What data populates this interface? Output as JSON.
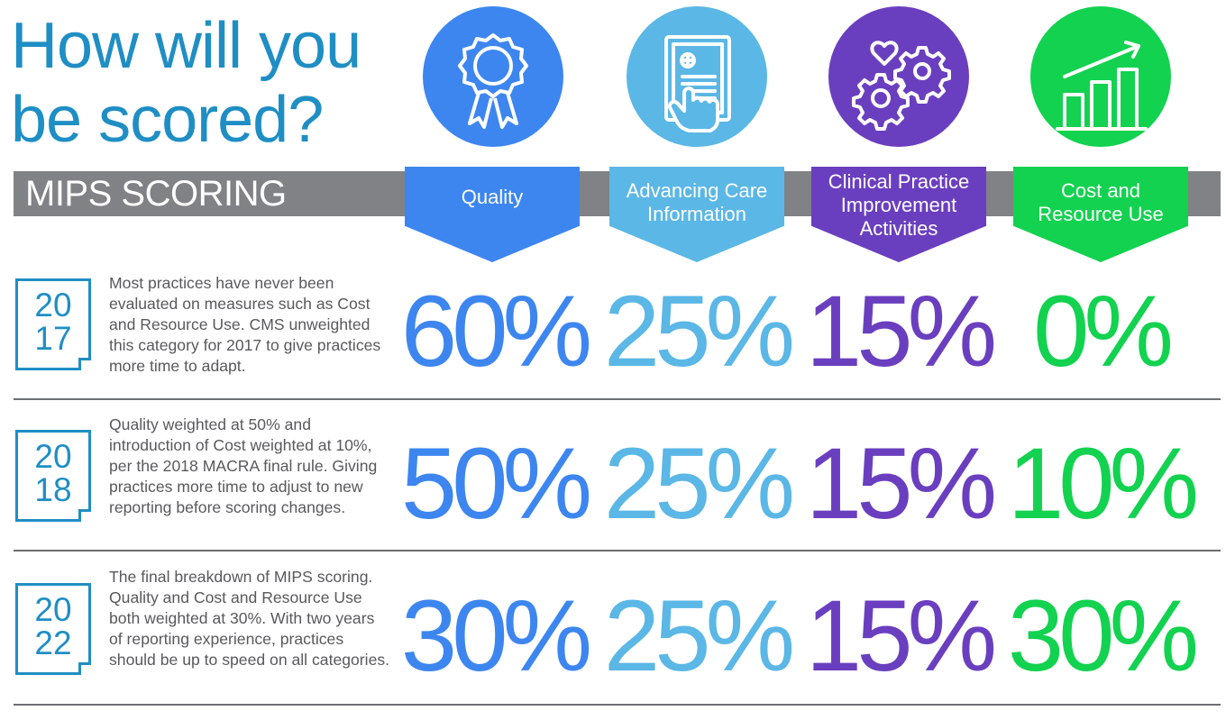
{
  "title_line1": "How will you",
  "title_line2": "be scored?",
  "section_label": "MIPS SCORING",
  "colors": {
    "quality": "#3d86f0",
    "advancing": "#5bb7e5",
    "clinical": "#6a3fbf",
    "cost": "#12d250",
    "title": "#1f8ec4",
    "bar": "#808285"
  },
  "categories": [
    {
      "label": "Quality",
      "icon": "award-ribbon-icon",
      "color": "#3d86f0"
    },
    {
      "label": "Advancing Care Information",
      "icon": "tablet-hand-icon",
      "color": "#5bb7e5"
    },
    {
      "label": "Clinical Practice Improvement Activities",
      "icon": "gears-heart-icon",
      "color": "#6a3fbf"
    },
    {
      "label": "Cost and Resource Use",
      "icon": "bar-chart-arrow-icon",
      "color": "#12d250"
    }
  ],
  "rows": [
    {
      "year_top": "20",
      "year_bottom": "17",
      "description": "Most practices have never been evaluated on measures such as Cost and Resource Use. CMS unweighted this category for 2017 to give practices more time to adapt.",
      "values": [
        "60%",
        "25%",
        "15%",
        "0%"
      ]
    },
    {
      "year_top": "20",
      "year_bottom": "18",
      "description": "Quality weighted at 50% and introduction of Cost weighted at 10%, per the 2018 MACRA final rule. Giving practices more time to adjust to new reporting before scoring changes.",
      "values": [
        "50%",
        "25%",
        "15%",
        "10%"
      ]
    },
    {
      "year_top": "20",
      "year_bottom": "22",
      "description": "The final breakdown of MIPS scoring. Quality and Cost and Resource Use both weighted at 30%. With two years of reporting experience, practices should be up to speed on all categories.",
      "values": [
        "30%",
        "25%",
        "15%",
        "30%"
      ]
    }
  ]
}
